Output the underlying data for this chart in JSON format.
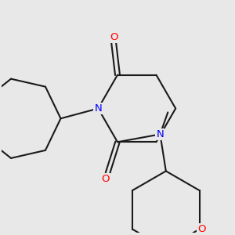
{
  "background_color": "#e8e8e8",
  "bond_color": "#1a1a1a",
  "N_color": "#0000ff",
  "O_color": "#ff0000",
  "bond_width": 1.5,
  "figsize": [
    3.0,
    3.0
  ],
  "dpi": 100,
  "xlim": [
    -2.5,
    3.5
  ],
  "ylim": [
    -3.2,
    2.8
  ]
}
